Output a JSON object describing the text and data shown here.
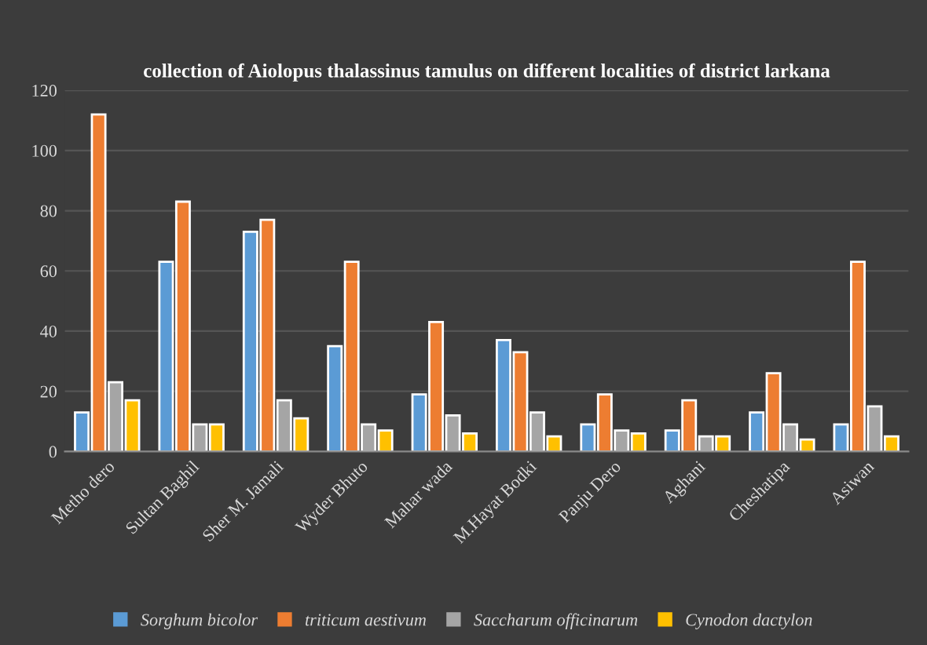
{
  "chart_data": {
    "type": "bar",
    "title": "collection of Aiolopus thalassinus tamulus on different localities of district larkana",
    "categories": [
      "Metho dero",
      "Sultan Baghil",
      "Sher M. Jamali",
      "Wyder Bhuto",
      "Mahar wada",
      "M.Hayat Bodki",
      "Panju Dero",
      "Aghani",
      "Cheshatipa",
      "Asiwan"
    ],
    "series": [
      {
        "name": "Sorghum bicolor",
        "color": "#5b9bd5",
        "values": [
          13,
          63,
          73,
          35,
          19,
          37,
          9,
          7,
          13,
          9
        ]
      },
      {
        "name": "triticum aestivum",
        "color": "#ed7d31",
        "values": [
          112,
          83,
          77,
          63,
          43,
          33,
          19,
          17,
          26,
          63
        ]
      },
      {
        "name": "Saccharum officinarum",
        "color": "#a5a5a5",
        "values": [
          23,
          9,
          17,
          9,
          12,
          13,
          7,
          5,
          9,
          15
        ]
      },
      {
        "name": "Cynodon dactylon",
        "color": "#ffc000",
        "values": [
          17,
          9,
          11,
          7,
          6,
          5,
          6,
          5,
          4,
          5
        ]
      }
    ],
    "ylim": [
      0,
      120
    ],
    "yticks": [
      0,
      20,
      40,
      60,
      80,
      100,
      120
    ],
    "grid": "y",
    "legend": "bottom"
  }
}
